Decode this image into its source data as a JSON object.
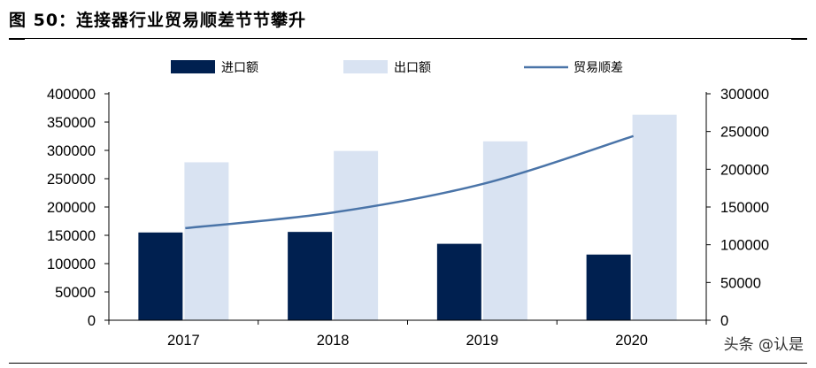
{
  "title": "图 50：连接器行业贸易顺差节节攀升",
  "watermark": "头条 @认是",
  "chart_data": {
    "type": "bar",
    "categories": [
      "2017",
      "2018",
      "2019",
      "2020"
    ],
    "series": [
      {
        "name": "进口额",
        "type": "bar",
        "axis": "left",
        "color": "#002050",
        "values": [
          155000,
          156000,
          135000,
          116000
        ]
      },
      {
        "name": "出口额",
        "type": "bar",
        "axis": "left",
        "color": "#d9e3f2",
        "values": [
          279000,
          299000,
          316000,
          363000
        ]
      },
      {
        "name": "贸易顺差",
        "type": "line",
        "axis": "right",
        "color": "#4a74a8",
        "values": [
          122000,
          143000,
          181000,
          244000
        ]
      }
    ],
    "ylim_left": [
      0,
      400000
    ],
    "ylim_right": [
      0,
      300000
    ],
    "yticks_left": [
      "0",
      "50000",
      "100000",
      "150000",
      "200000",
      "250000",
      "300000",
      "350000",
      "400000"
    ],
    "yticks_right": [
      "0",
      "50000",
      "100000",
      "150000",
      "200000",
      "250000",
      "300000"
    ],
    "legend_position": "top",
    "grid": false
  }
}
